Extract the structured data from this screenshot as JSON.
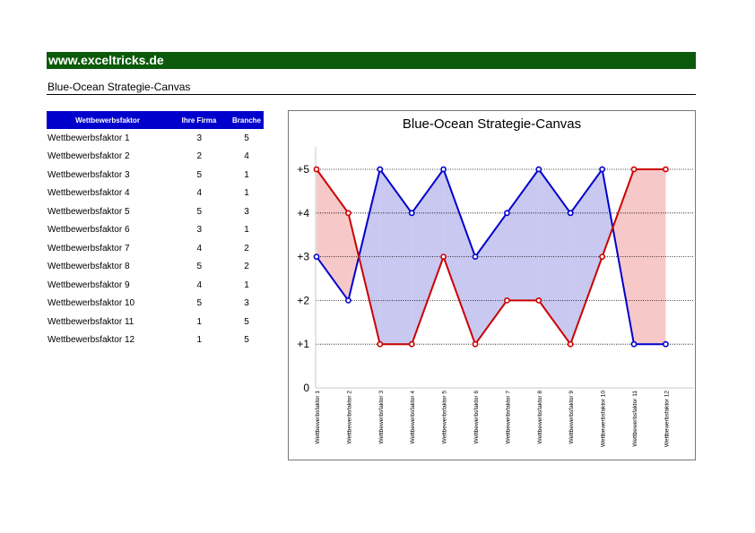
{
  "banner": {
    "text": "www.exceltricks.de"
  },
  "subtitle": "Blue-Ocean Strategie-Canvas",
  "table": {
    "headers": [
      "Wettbewerbsfaktor",
      "Ihre Firma",
      "Branche"
    ],
    "rows": [
      [
        "Wettbewerbsfaktor 1",
        "3",
        "5"
      ],
      [
        "Wettbewerbsfaktor 2",
        "2",
        "4"
      ],
      [
        "Wettbewerbsfaktor 3",
        "5",
        "1"
      ],
      [
        "Wettbewerbsfaktor 4",
        "4",
        "1"
      ],
      [
        "Wettbewerbsfaktor 5",
        "5",
        "3"
      ],
      [
        "Wettbewerbsfaktor 6",
        "3",
        "1"
      ],
      [
        "Wettbewerbsfaktor 7",
        "4",
        "2"
      ],
      [
        "Wettbewerbsfaktor 8",
        "5",
        "2"
      ],
      [
        "Wettbewerbsfaktor 9",
        "4",
        "1"
      ],
      [
        "Wettbewerbsfaktor 10",
        "5",
        "3"
      ],
      [
        "Wettbewerbsfaktor 11",
        "1",
        "5"
      ],
      [
        "Wettbewerbsfaktor 12",
        "1",
        "5"
      ]
    ]
  },
  "chart_data": {
    "type": "line",
    "title": "Blue-Ocean Strategie-Canvas",
    "categories": [
      "Wettbewerbsfaktor 1",
      "Wettbewerbsfaktor 2",
      "Wettbewerbsfaktor 3",
      "Wettbewerbsfaktor 4",
      "Wettbewerbsfaktor 5",
      "Wettbewerbsfaktor 6",
      "Wettbewerbsfaktor 7",
      "Wettbewerbsfaktor 8",
      "Wettbewerbsfaktor 9",
      "Wettbewerbsfaktor 10",
      "Wettbewerbsfaktor 11",
      "Wettbewerbsfaktor 12"
    ],
    "series": [
      {
        "values": [
          3,
          2,
          5,
          4,
          5,
          3,
          4,
          5,
          4,
          5,
          1,
          1
        ],
        "color": "#0000cc"
      },
      {
        "values": [
          5,
          4,
          1,
          1,
          3,
          1,
          2,
          2,
          1,
          3,
          5,
          5
        ],
        "color": "#cc0000"
      }
    ],
    "fill_colors": {
      "blue_above": "#c8c8f0",
      "red_above": "#f6c8c8"
    },
    "ylim": [
      0,
      5
    ],
    "ytick_labels": [
      "0",
      "+1",
      "+2",
      "+3",
      "+4",
      "+5"
    ],
    "grid": "dotted horizontal",
    "legend": "none"
  }
}
